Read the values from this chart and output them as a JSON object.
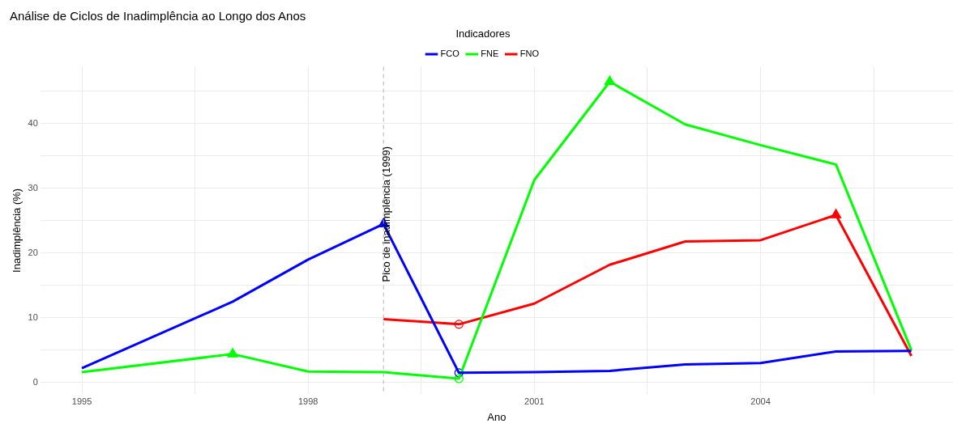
{
  "chart_data": {
    "type": "line",
    "title": "Análise de Ciclos de Inadimplência ao Longo dos Anos",
    "xlabel": "Ano",
    "ylabel": "Inadimplência (%)",
    "legend_title": "Indicadores",
    "legend": "top",
    "grid": true,
    "marker": "none",
    "line_style": "solid",
    "xlim": [
      1994.45,
      2006.55
    ],
    "xticks": [
      1995,
      {
        "value": 1996.5,
        "label": null
      },
      1998,
      {
        "value": 1999.5,
        "label": null
      },
      2001,
      {
        "value": 2002.5,
        "label": null
      },
      2004,
      {
        "value": 2005.5,
        "label": null
      }
    ],
    "ylim": [
      -1.8,
      48.8
    ],
    "yticks": [
      0,
      {
        "value": 5,
        "label": null
      },
      10,
      {
        "value": 15,
        "label": null
      },
      20,
      {
        "value": 25,
        "label": null
      },
      30,
      {
        "value": 35,
        "label": null
      },
      40,
      {
        "value": 45,
        "label": null
      }
    ],
    "ref_lines": [
      {
        "axis": "x",
        "value": 1999,
        "label": "Pico de inadimplência (1999)",
        "color": "#b3b3b3",
        "line_style": "dashed"
      }
    ],
    "series": [
      {
        "name": "FCO",
        "color": "#0000ff",
        "x": [
          1995,
          1997,
          1998,
          1999,
          2000,
          2001,
          2002,
          2003,
          2004,
          2005,
          2006
        ],
        "values": [
          2.2,
          12.5,
          19.0,
          24.5,
          1.5,
          1.6,
          1.8,
          2.8,
          3.0,
          4.8,
          4.9
        ]
      },
      {
        "name": "FNE",
        "color": "#00ff00",
        "x": [
          1995,
          1997,
          1998,
          1999,
          2000,
          2001,
          2002,
          2003,
          2004,
          2005,
          2006
        ],
        "values": [
          1.6,
          4.4,
          1.7,
          1.6,
          0.6,
          31.3,
          46.5,
          39.9,
          36.7,
          33.7,
          5.0
        ]
      },
      {
        "name": "FNO",
        "color": "#ff0000",
        "x": [
          1999,
          2000,
          2001,
          2002,
          2003,
          2004,
          2005,
          2006
        ],
        "values": [
          9.8,
          9.0,
          12.2,
          18.2,
          21.8,
          22.0,
          25.9,
          4.1
        ]
      },
      {
        "type": "scatter",
        "marker": "triangle",
        "color": "#0000ff",
        "x": [
          1999
        ],
        "values": [
          24.5
        ]
      },
      {
        "type": "scatter",
        "marker": "triangle",
        "color": "#00ff00",
        "x": [
          1997,
          2002
        ],
        "values": [
          4.4,
          46.5
        ]
      },
      {
        "type": "scatter",
        "marker": "triangle",
        "color": "#ff0000",
        "x": [
          2005
        ],
        "values": [
          25.9
        ]
      },
      {
        "type": "scatter",
        "marker": "circle",
        "color": "#0000ff",
        "x": [
          2000
        ],
        "values": [
          1.5
        ]
      },
      {
        "type": "scatter",
        "marker": "circle",
        "color": "#00ff00",
        "x": [
          2000
        ],
        "values": [
          0.6
        ]
      },
      {
        "type": "scatter",
        "marker": "circle",
        "color": "#ff0000",
        "x": [
          2000
        ],
        "values": [
          9.0
        ]
      }
    ]
  }
}
